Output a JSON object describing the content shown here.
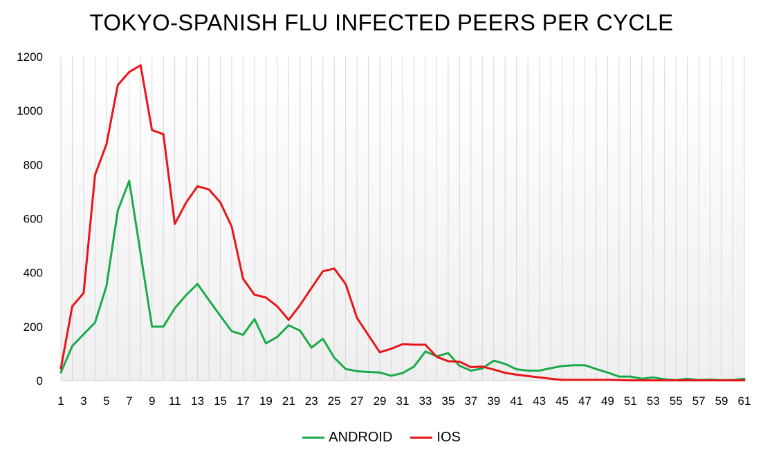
{
  "chart_data": {
    "type": "line",
    "title": "TOKYO-SPANISH FLU INFECTED PEERS PER CYCLE",
    "xlabel": "",
    "ylabel": "",
    "x": [
      1,
      2,
      3,
      4,
      5,
      6,
      7,
      8,
      9,
      10,
      11,
      12,
      13,
      14,
      15,
      16,
      17,
      18,
      19,
      20,
      21,
      22,
      23,
      24,
      25,
      26,
      27,
      28,
      29,
      30,
      31,
      32,
      33,
      34,
      35,
      36,
      37,
      38,
      39,
      40,
      41,
      42,
      43,
      44,
      45,
      46,
      47,
      48,
      49,
      50,
      51,
      52,
      53,
      54,
      55,
      56,
      57,
      58,
      59,
      60,
      61
    ],
    "x_tick_labels": [
      "1",
      "3",
      "5",
      "7",
      "9",
      "11",
      "13",
      "15",
      "17",
      "19",
      "21",
      "23",
      "25",
      "27",
      "29",
      "31",
      "33",
      "35",
      "37",
      "39",
      "41",
      "43",
      "45",
      "47",
      "49",
      "51",
      "53",
      "55",
      "57",
      "59",
      "61"
    ],
    "ylim": [
      0,
      1200
    ],
    "y_ticks": [
      "0",
      "200",
      "400",
      "600",
      "800",
      "1000",
      "1200"
    ],
    "grid": "vertical-lines",
    "legend_position": "bottom-center",
    "series": [
      {
        "name": "ANDROID",
        "color": "#1aaa4a",
        "values": [
          30,
          128,
          172,
          215,
          350,
          630,
          740,
          470,
          200,
          200,
          268,
          317,
          358,
          298,
          240,
          183,
          170,
          228,
          138,
          162,
          205,
          185,
          122,
          155,
          85,
          43,
          35,
          32,
          30,
          18,
          28,
          52,
          108,
          90,
          102,
          55,
          37,
          45,
          74,
          62,
          42,
          37,
          37,
          46,
          54,
          57,
          57,
          43,
          30,
          15,
          15,
          7,
          12,
          5,
          2,
          7,
          2,
          4,
          2,
          2,
          7
        ]
      },
      {
        "name": "IOS",
        "color": "#e8141a",
        "values": [
          45,
          275,
          325,
          762,
          875,
          1095,
          1143,
          1168,
          928,
          913,
          580,
          660,
          720,
          708,
          660,
          570,
          377,
          318,
          308,
          275,
          225,
          280,
          343,
          405,
          415,
          358,
          232,
          168,
          105,
          118,
          135,
          133,
          133,
          88,
          72,
          70,
          50,
          52,
          41,
          29,
          22,
          17,
          12,
          7,
          3,
          3,
          3,
          3,
          3,
          2,
          1,
          1,
          1,
          1,
          1,
          1,
          1,
          1,
          1,
          1,
          1
        ]
      }
    ]
  }
}
